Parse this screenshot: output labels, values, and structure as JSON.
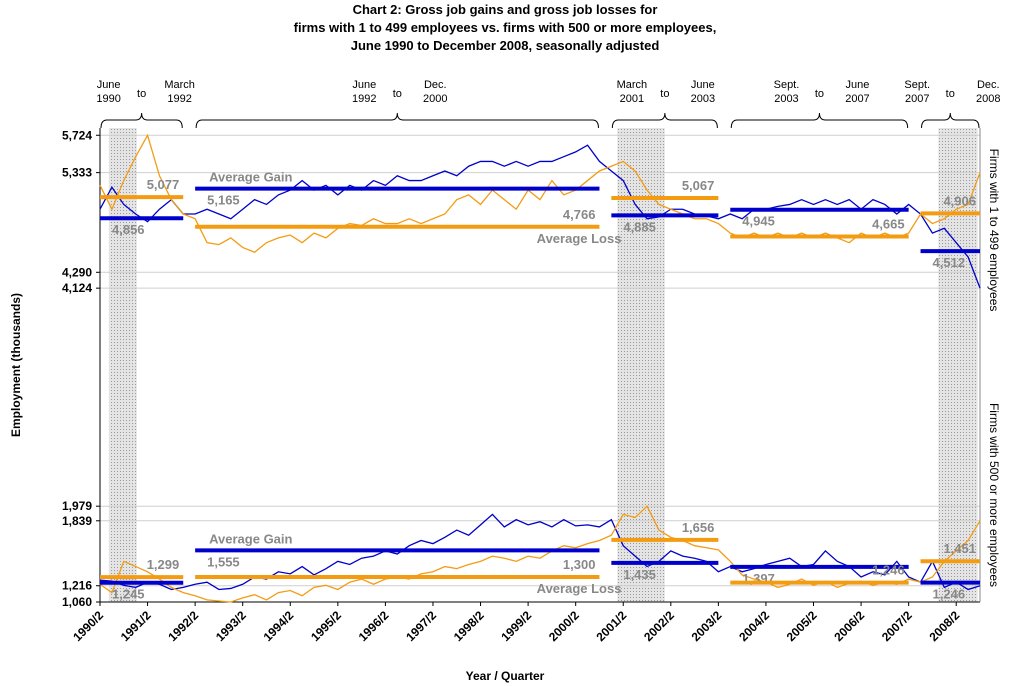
{
  "chart_data": {
    "type": "line",
    "title": [
      "Chart 2: Gross job gains and gross job losses for",
      "firms with 1 to 499 employees vs. firms with 500 or more employees,",
      "June 1990 to December 2008, seasonally adjusted"
    ],
    "xlabel": "Year / Quarter",
    "ylabel": "Employment (thousands)",
    "categories": [
      "1990/2",
      null,
      null,
      null,
      "1991/2",
      null,
      null,
      null,
      "1992/2",
      null,
      null,
      null,
      "1993/2",
      null,
      null,
      null,
      "1994/2",
      null,
      null,
      null,
      "1995/2",
      null,
      null,
      null,
      "1996/2",
      null,
      null,
      null,
      "1997/2",
      null,
      null,
      null,
      "1998/2",
      null,
      null,
      null,
      "1999/2",
      null,
      null,
      null,
      "2000/2",
      null,
      null,
      null,
      "2001/2",
      null,
      null,
      null,
      "2002/2",
      null,
      null,
      null,
      "2003/2",
      null,
      null,
      null,
      "2004/2",
      null,
      null,
      null,
      "2005/2",
      null,
      null,
      null,
      "2006/2",
      null,
      null,
      null,
      "2007/2",
      null,
      null,
      null,
      "2008/2",
      null,
      null
    ],
    "periods": [
      {
        "from": [
          "June",
          "1990"
        ],
        "to": "to",
        "until": [
          "March",
          "1992"
        ],
        "span": [
          0,
          7
        ]
      },
      {
        "from": [
          "June",
          "1992"
        ],
        "to": "to",
        "until": [
          "Dec.",
          "2000"
        ],
        "span": [
          8,
          42
        ]
      },
      {
        "from": [
          "March",
          "2001"
        ],
        "to": "to",
        "until": [
          "June",
          "2003"
        ],
        "span": [
          43,
          52
        ]
      },
      {
        "from": [
          "Sept.",
          "2003"
        ],
        "to": "to",
        "until": [
          "June",
          "2007"
        ],
        "span": [
          53,
          68
        ]
      },
      {
        "from": [
          "Sept.",
          "2007"
        ],
        "to": "to",
        "until": [
          "Dec.",
          "2008"
        ],
        "span": [
          69,
          74
        ]
      }
    ],
    "shaded": [
      [
        0.75,
        3.1
      ],
      [
        43.5,
        47.5
      ],
      [
        70.5,
        73.8
      ]
    ],
    "panels": [
      {
        "side_label": "Firms with 1 to 499 employees",
        "gain_text": "Average Gain",
        "loss_text": "Average Loss",
        "ylim": [
          4000,
          5800
        ],
        "yticks": [
          {
            "value": 4124,
            "label": "4,124"
          },
          {
            "value": 4290,
            "label": "4,290"
          },
          {
            "value": 5333,
            "label": "5,333"
          },
          {
            "value": 5724,
            "label": "5,724"
          }
        ],
        "series": [
          {
            "color": "#0000cc",
            "values": [
              4950,
              5180,
              5000,
              4900,
              4820,
              4950,
              5050,
              4900,
              4900,
              4950,
              4900,
              4850,
              4950,
              5050,
              5000,
              5100,
              5150,
              5250,
              5150,
              5200,
              5100,
              5200,
              5150,
              5250,
              5200,
              5300,
              5250,
              5250,
              5300,
              5350,
              5300,
              5400,
              5450,
              5450,
              5400,
              5450,
              5400,
              5450,
              5450,
              5500,
              5550,
              5620,
              5450,
              5350,
              5250,
              5000,
              4850,
              4870,
              4950,
              4950,
              4900,
              4880,
              4850,
              4900,
              4850,
              4950,
              4950,
              4980,
              5000,
              5050,
              5000,
              5050,
              5000,
              5050,
              4950,
              5050,
              5000,
              4900,
              5000,
              4900,
              4700,
              4750,
              4600,
              4450,
              4124
            ],
            "averages": [
              4856,
              5165,
              4885,
              4945,
              4512
            ],
            "average_labels": [
              "4,856",
              "5,165",
              "4,885",
              "4,945",
              "4,512"
            ]
          },
          {
            "color": "#f39c12",
            "values": [
              5200,
              4950,
              5250,
              5500,
              5724,
              5300,
              5050,
              4900,
              4850,
              4600,
              4580,
              4650,
              4550,
              4500,
              4600,
              4650,
              4680,
              4600,
              4700,
              4650,
              4750,
              4800,
              4780,
              4850,
              4800,
              4800,
              4850,
              4800,
              4850,
              4900,
              5050,
              5100,
              5000,
              5150,
              5050,
              4950,
              5150,
              5050,
              5250,
              5100,
              5150,
              5250,
              5350,
              5400,
              5450,
              5350,
              5150,
              5000,
              4950,
              4900,
              4850,
              4850,
              4800,
              4700,
              4650,
              4700,
              4650,
              4700,
              4650,
              4700,
              4650,
              4700,
              4650,
              4600,
              4700,
              4650,
              4700,
              4650,
              4700,
              4900,
              4800,
              4850,
              4950,
              5000,
              5333
            ],
            "averages": [
              5077,
              4766,
              5067,
              4665,
              4906
            ],
            "average_labels": [
              "5,077",
              "4,766",
              "5,067",
              "4,665",
              "4,906"
            ]
          }
        ]
      },
      {
        "side_label": "Firms with 500 or more employees",
        "gain_text": "Average Gain",
        "loss_text": "Average Loss",
        "ylim": [
          1060,
          2000
        ],
        "yticks": [
          {
            "value": 1060,
            "label": "1,060"
          },
          {
            "value": 1216,
            "label": "1,216"
          },
          {
            "value": 1839,
            "label": "1,839"
          },
          {
            "value": 1979,
            "label": "1,979"
          }
        ],
        "series": [
          {
            "color": "#0000cc",
            "values": [
              1270,
              1260,
              1220,
              1200,
              1250,
              1230,
              1180,
              1200,
              1230,
              1250,
              1180,
              1190,
              1230,
              1300,
              1280,
              1350,
              1330,
              1400,
              1320,
              1380,
              1450,
              1420,
              1480,
              1500,
              1550,
              1520,
              1600,
              1650,
              1620,
              1680,
              1750,
              1700,
              1800,
              1900,
              1780,
              1850,
              1800,
              1830,
              1780,
              1850,
              1790,
              1800,
              1780,
              1850,
              1600,
              1500,
              1400,
              1450,
              1550,
              1500,
              1480,
              1450,
              1350,
              1400,
              1350,
              1380,
              1420,
              1450,
              1480,
              1400,
              1420,
              1550,
              1450,
              1400,
              1300,
              1350,
              1320,
              1450,
              1300,
              1250,
              1450,
              1200,
              1250,
              1180,
              1216
            ],
            "averages": [
              1245,
              1555,
              1435,
              1397,
              1246
            ],
            "average_labels": [
              "1,245",
              "1,555",
              "1,435",
              "1,397",
              "1,246"
            ]
          },
          {
            "color": "#f39c12",
            "values": [
              1230,
              1150,
              1450,
              1400,
              1350,
              1280,
              1200,
              1150,
              1120,
              1080,
              1070,
              1060,
              1100,
              1130,
              1080,
              1150,
              1170,
              1120,
              1200,
              1220,
              1180,
              1250,
              1280,
              1230,
              1280,
              1300,
              1280,
              1330,
              1350,
              1400,
              1380,
              1420,
              1450,
              1500,
              1480,
              1450,
              1500,
              1480,
              1550,
              1600,
              1580,
              1620,
              1650,
              1700,
              1900,
              1870,
              1979,
              1750,
              1680,
              1650,
              1600,
              1580,
              1560,
              1450,
              1320,
              1280,
              1250,
              1200,
              1230,
              1280,
              1220,
              1260,
              1200,
              1240,
              1260,
              1220,
              1250,
              1230,
              1280,
              1250,
              1300,
              1450,
              1550,
              1650,
              1839
            ],
            "averages": [
              1299,
              1300,
              1656,
              1246,
              1451
            ],
            "average_labels": [
              "1,299",
              "1,300",
              "1,656",
              "1,246",
              "1,451"
            ]
          }
        ]
      }
    ]
  }
}
